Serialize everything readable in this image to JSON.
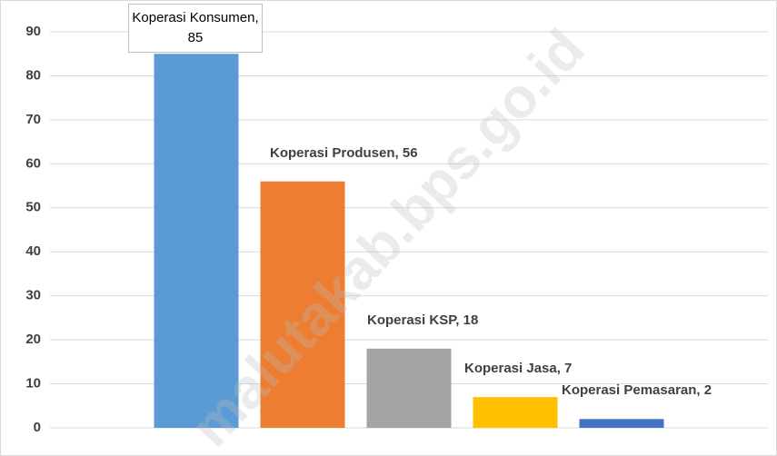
{
  "chart_data": {
    "type": "bar",
    "series": [
      {
        "name": "Koperasi Konsumen",
        "color": "#5b9bd5",
        "values": [
          85
        ],
        "value_labels": [
          "Koperasi Konsumen, 85"
        ]
      },
      {
        "name": "Koperasi Produsen",
        "color": "#ed7d31",
        "values": [
          56
        ],
        "value_labels": [
          "Koperasi Produsen, 56"
        ]
      },
      {
        "name": "Koperasi KSP",
        "color": "#a5a5a5",
        "values": [
          18
        ],
        "value_labels": [
          "Koperasi KSP, 18"
        ]
      },
      {
        "name": "Koperasi Jasa",
        "color": "#ffc000",
        "values": [
          7
        ],
        "value_labels": [
          "Koperasi Jasa, 7"
        ]
      },
      {
        "name": "Koperasi Pemasaran",
        "color": "#4472c4",
        "values": [
          2
        ],
        "value_labels": [
          "Koperasi Pemasaran, 2"
        ]
      }
    ],
    "ylim": [
      0,
      90
    ],
    "yticks": [
      0,
      10,
      20,
      30,
      40,
      50,
      60,
      70,
      80,
      90
    ],
    "grid": true
  },
  "watermark": "malutakab.bps.go.id"
}
